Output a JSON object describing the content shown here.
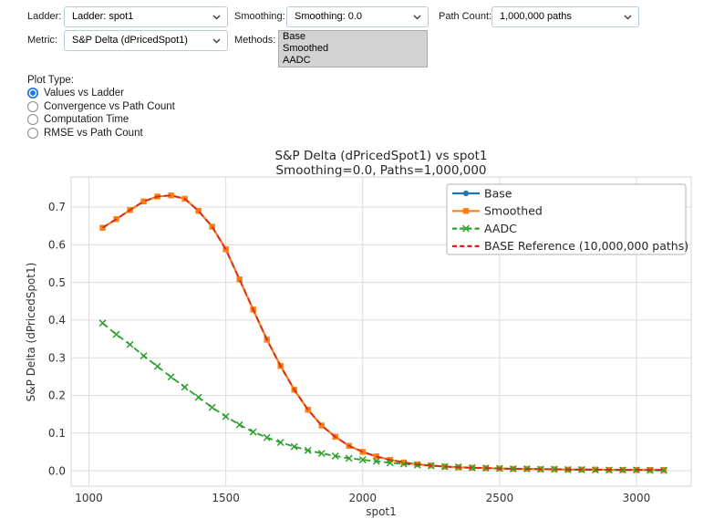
{
  "controls": {
    "ladder": {
      "label": "Ladder:",
      "value": "Ladder: spot1"
    },
    "smoothing": {
      "label": "Smoothing:",
      "value": "Smoothing: 0.0"
    },
    "path_count": {
      "label": "Path Count:",
      "value": "1,000,000 paths"
    },
    "metric": {
      "label": "Metric:",
      "value": "S&P Delta (dPricedSpot1)"
    },
    "methods": {
      "label": "Methods:",
      "options": [
        "Base",
        "Smoothed",
        "AADC"
      ],
      "selected": [
        "Base",
        "Smoothed",
        "AADC"
      ]
    }
  },
  "plot_type": {
    "label": "Plot Type:",
    "options": [
      {
        "label": "Values vs Ladder",
        "selected": true
      },
      {
        "label": "Convergence vs Path Count",
        "selected": false
      },
      {
        "label": "Computation Time",
        "selected": false
      },
      {
        "label": "RMSE vs Path Count",
        "selected": false
      }
    ]
  },
  "chart_data": {
    "type": "line",
    "title": "S&P Delta (dPricedSpot1) vs spot1",
    "subtitle": "Smoothing=0.0, Paths=1,000,000",
    "xlabel": "spot1",
    "ylabel": "S&P Delta (dPricedSpot1)",
    "xlim": [
      935,
      3200
    ],
    "ylim": [
      -0.041,
      0.78
    ],
    "xticks": [
      1000,
      1500,
      2000,
      2500,
      3000
    ],
    "yticks": [
      0.0,
      0.1,
      0.2,
      0.3,
      0.4,
      0.5,
      0.6,
      0.7
    ],
    "grid": true,
    "legend_position": "upper right",
    "grid_color": "#dcdcdc",
    "x": [
      1050,
      1100,
      1150,
      1200,
      1250,
      1300,
      1350,
      1400,
      1450,
      1500,
      1550,
      1600,
      1650,
      1700,
      1750,
      1800,
      1850,
      1900,
      1950,
      2000,
      2050,
      2100,
      2150,
      2200,
      2250,
      2300,
      2350,
      2400,
      2450,
      2500,
      2550,
      2600,
      2650,
      2700,
      2750,
      2800,
      2850,
      2900,
      2950,
      3000,
      3050,
      3100
    ],
    "series": [
      {
        "name": "Base",
        "color": "#1f77b4",
        "line": "solid",
        "marker": "circle",
        "values": [
          0.645,
          0.668,
          0.692,
          0.715,
          0.728,
          0.731,
          0.722,
          0.69,
          0.648,
          0.588,
          0.508,
          0.428,
          0.348,
          0.278,
          0.215,
          0.162,
          0.12,
          0.09,
          0.066,
          0.05,
          0.038,
          0.029,
          0.022,
          0.017,
          0.014,
          0.011,
          0.009,
          0.008,
          0.007,
          0.006,
          0.005,
          0.005,
          0.004,
          0.004,
          0.003,
          0.003,
          0.003,
          0.002,
          0.002,
          0.002,
          0.002,
          0.002
        ]
      },
      {
        "name": "Smoothed",
        "color": "#ff7f0e",
        "line": "solid",
        "marker": "square",
        "values": [
          0.645,
          0.668,
          0.692,
          0.715,
          0.728,
          0.731,
          0.722,
          0.69,
          0.648,
          0.588,
          0.508,
          0.428,
          0.348,
          0.278,
          0.215,
          0.162,
          0.12,
          0.09,
          0.066,
          0.05,
          0.038,
          0.029,
          0.022,
          0.017,
          0.014,
          0.011,
          0.009,
          0.008,
          0.007,
          0.006,
          0.005,
          0.005,
          0.004,
          0.004,
          0.003,
          0.003,
          0.003,
          0.002,
          0.002,
          0.002,
          0.002,
          0.002
        ]
      },
      {
        "name": "AADC",
        "color": "#2ca02c",
        "line": "dashed",
        "marker": "x",
        "values": [
          0.392,
          0.362,
          0.335,
          0.305,
          0.277,
          0.249,
          0.222,
          0.195,
          0.168,
          0.144,
          0.122,
          0.103,
          0.088,
          0.075,
          0.064,
          0.054,
          0.046,
          0.039,
          0.033,
          0.029,
          0.025,
          0.021,
          0.018,
          0.015,
          0.013,
          0.011,
          0.01,
          0.008,
          0.007,
          0.006,
          0.005,
          0.005,
          0.004,
          0.004,
          0.003,
          0.003,
          0.002,
          0.002,
          0.002,
          0.002,
          0.001,
          0.001
        ]
      },
      {
        "name": "BASE Reference (10,000,000 paths)",
        "color": "#d62728",
        "line": "dashed",
        "marker": "none",
        "values": [
          0.645,
          0.668,
          0.692,
          0.715,
          0.728,
          0.731,
          0.722,
          0.69,
          0.648,
          0.588,
          0.508,
          0.428,
          0.348,
          0.278,
          0.215,
          0.162,
          0.12,
          0.09,
          0.066,
          0.05,
          0.038,
          0.029,
          0.022,
          0.017,
          0.014,
          0.011,
          0.009,
          0.008,
          0.007,
          0.006,
          0.005,
          0.005,
          0.004,
          0.004,
          0.003,
          0.003,
          0.003,
          0.002,
          0.002,
          0.002,
          0.002,
          0.002
        ]
      }
    ]
  }
}
